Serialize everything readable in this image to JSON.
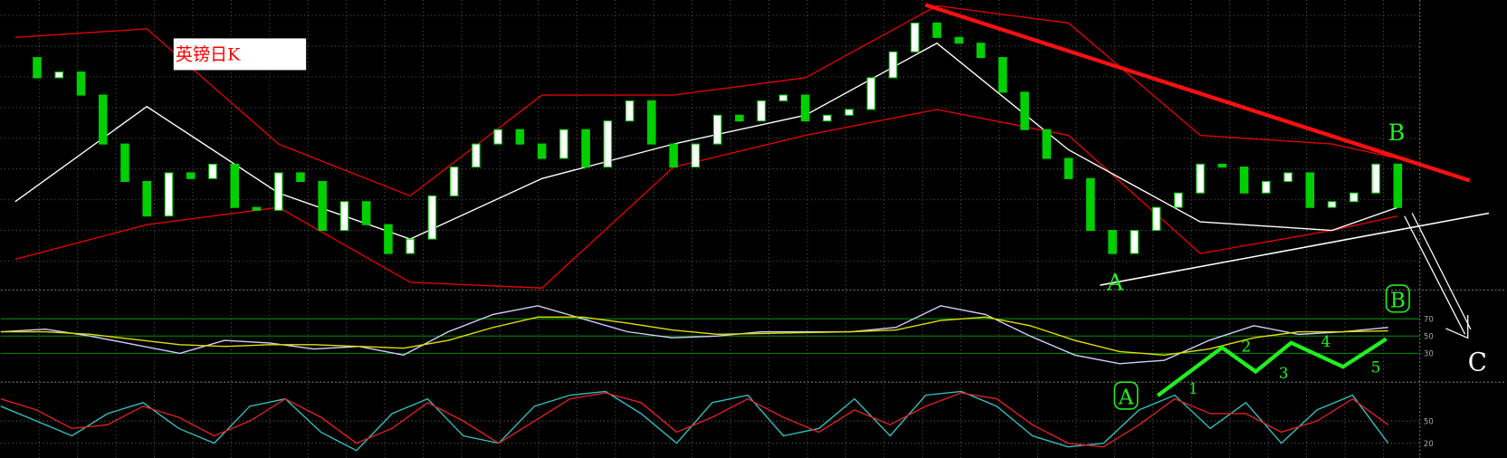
{
  "chart_data": [
    {
      "type": "candlestick",
      "title": "英镑日K",
      "ylim": [
        0,
        100
      ],
      "up_color": "#ffffff",
      "down_color": "#00d000",
      "close": [
        80,
        73,
        75,
        67,
        50,
        37,
        25,
        40,
        38,
        43,
        28,
        27,
        40,
        37,
        20,
        30,
        22,
        12,
        17,
        32,
        42,
        50,
        55,
        50,
        45,
        55,
        42,
        58,
        65,
        50,
        42,
        50,
        60,
        58,
        65,
        67,
        58,
        60,
        62,
        73,
        82,
        92,
        87,
        85,
        80,
        68,
        55,
        45,
        38,
        20,
        12,
        20,
        28,
        33,
        43,
        42,
        33,
        37,
        40,
        28,
        30,
        33,
        43,
        28
      ],
      "series": [
        {
          "color": "#e00000",
          "x": [
            0,
            6,
            12,
            18,
            24,
            30,
            36,
            42,
            48,
            54,
            60,
            63
          ],
          "values": [
            87,
            90,
            50,
            32,
            67,
            67,
            73,
            98,
            92,
            53,
            50,
            45
          ]
        },
        {
          "color": "#e00000",
          "x": [
            0,
            6,
            12,
            18,
            24,
            30,
            36,
            42,
            48,
            54,
            60,
            63
          ],
          "values": [
            10,
            22,
            28,
            2,
            0,
            42,
            53,
            62,
            53,
            12,
            20,
            25
          ]
        },
        {
          "color": "#ffffff",
          "x": [
            0,
            6,
            12,
            18,
            24,
            30,
            36,
            42,
            48,
            54,
            60,
            63
          ],
          "values": [
            30,
            63,
            33,
            17,
            38,
            50,
            60,
            85,
            48,
            23,
            20,
            28
          ]
        }
      ],
      "annotations": [
        "B",
        "A",
        "C"
      ]
    },
    {
      "type": "line",
      "ylim": [
        0,
        100
      ],
      "yticks": [
        30,
        50,
        70
      ],
      "series": [
        {
          "color": "#d0d0ff",
          "values": [
            55,
            58,
            50,
            40,
            30,
            45,
            42,
            35,
            38,
            28,
            55,
            75,
            85,
            70,
            55,
            48,
            50,
            55,
            55,
            55,
            60,
            85,
            75,
            50,
            28,
            18,
            22,
            45,
            62,
            52,
            55,
            60
          ]
        },
        {
          "color": "#e0e000",
          "values": [
            55,
            55,
            52,
            46,
            40,
            38,
            40,
            40,
            38,
            36,
            45,
            60,
            72,
            72,
            65,
            57,
            52,
            53,
            54,
            55,
            57,
            68,
            72,
            62,
            45,
            32,
            28,
            35,
            48,
            55,
            55,
            56
          ]
        }
      ],
      "annotations": [
        "B",
        "A",
        "1",
        "2",
        "3",
        "4",
        "5"
      ]
    },
    {
      "type": "line",
      "ylim": [
        0,
        100
      ],
      "yticks": [
        20,
        50
      ],
      "series": [
        {
          "color": "#30c0c0",
          "values": [
            70,
            50,
            30,
            60,
            75,
            40,
            20,
            70,
            80,
            35,
            10,
            60,
            80,
            30,
            20,
            70,
            85,
            90,
            60,
            20,
            75,
            85,
            30,
            40,
            80,
            30,
            85,
            90,
            70,
            30,
            15,
            20,
            65,
            85,
            40,
            75,
            20,
            65,
            85,
            20
          ]
        },
        {
          "color": "#e02020",
          "values": [
            80,
            65,
            40,
            45,
            70,
            55,
            30,
            50,
            80,
            55,
            20,
            40,
            75,
            50,
            20,
            50,
            80,
            88,
            75,
            35,
            55,
            80,
            55,
            35,
            65,
            45,
            70,
            88,
            80,
            45,
            20,
            15,
            45,
            80,
            60,
            60,
            35,
            50,
            80,
            45
          ]
        }
      ]
    }
  ]
}
